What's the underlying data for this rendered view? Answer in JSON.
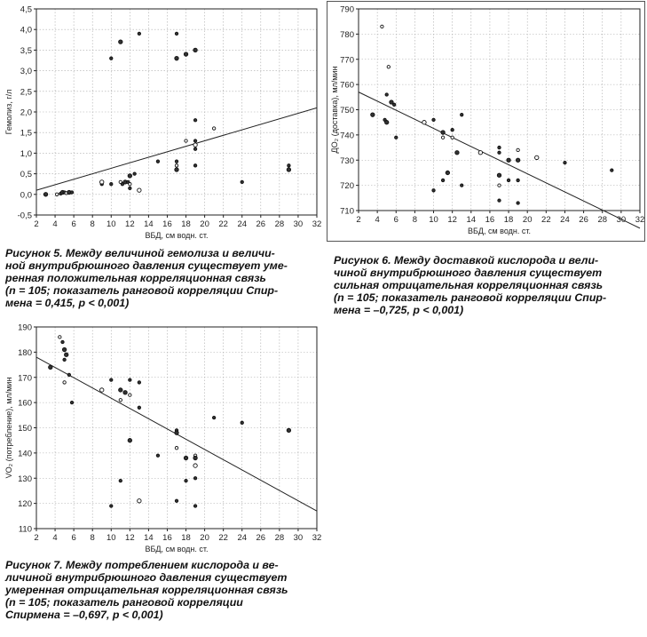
{
  "charts": [
    {
      "id": "fig5",
      "caption_lines": [
        "Рисунок 5. Между величиной гемолиза и величи-",
        "ной внутрибрюшного давления существует уме-",
        "ренная положительная корреляционная связь",
        "(n = 105; показатель ранговой корреляции Спир-",
        "мена = 0,415, p < 0,001)"
      ],
      "chart_data": {
        "type": "scatter",
        "xlabel": "ВБД, см водн. ст.",
        "ylabel": "Гемолиз, г/л",
        "xlim": [
          2,
          32
        ],
        "ylim": [
          -0.5,
          4.5
        ],
        "xticks": [
          "2",
          "4",
          "6",
          "8",
          "10",
          "12",
          "14",
          "16",
          "18",
          "20",
          "22",
          "24",
          "26",
          "28",
          "30",
          "32"
        ],
        "yticks": [
          "-0,5",
          "0,0",
          "0,5",
          "1,0",
          "1,5",
          "2,0",
          "2,5",
          "3,0",
          "3,5",
          "4,0",
          "4,5"
        ],
        "trendline": [
          [
            2,
            0.1
          ],
          [
            32,
            2.1
          ]
        ],
        "points": [
          [
            3,
            0.0
          ],
          [
            4.2,
            0.0
          ],
          [
            4.6,
            0.02
          ],
          [
            4.8,
            0.05
          ],
          [
            5,
            0.05
          ],
          [
            5.2,
            0.03
          ],
          [
            5.5,
            0.05
          ],
          [
            5.8,
            0.05
          ],
          [
            9,
            0.25
          ],
          [
            9,
            0.3
          ],
          [
            10,
            0.25
          ],
          [
            10,
            3.3
          ],
          [
            11,
            3.7
          ],
          [
            11,
            0.3
          ],
          [
            11.2,
            0.25
          ],
          [
            11.5,
            0.3
          ],
          [
            11.8,
            0.3
          ],
          [
            12,
            0.25
          ],
          [
            12,
            0.45
          ],
          [
            12,
            0.15
          ],
          [
            12.5,
            0.5
          ],
          [
            13,
            0.1
          ],
          [
            13,
            3.9
          ],
          [
            15,
            0.8
          ],
          [
            17,
            0.6
          ],
          [
            17,
            0.7
          ],
          [
            17,
            0.8
          ],
          [
            17,
            3.3
          ],
          [
            17,
            3.9
          ],
          [
            18,
            1.3
          ],
          [
            18,
            3.4
          ],
          [
            19,
            0.7
          ],
          [
            19,
            1.1
          ],
          [
            19,
            1.2
          ],
          [
            19,
            1.3
          ],
          [
            19,
            1.8
          ],
          [
            19,
            3.5
          ],
          [
            21,
            1.6
          ],
          [
            24,
            0.3
          ],
          [
            29,
            0.6
          ],
          [
            29,
            0.7
          ]
        ]
      }
    },
    {
      "id": "fig6",
      "caption_lines": [
        "Рисунок 6. Между доставкой кислорода и вели-",
        "чиной внутрибрюшного давления существует",
        "сильная отрицательная корреляционная связь",
        "(n = 105; показатель ранговой корреляции Спир-",
        "мена = –0,725, p < 0,001)"
      ],
      "chart_data": {
        "type": "scatter",
        "xlabel": "ВБД, см водн. ст.",
        "ylabel": "ДО₂ (доставка), мл/мин",
        "xlim": [
          2,
          32
        ],
        "ylim": [
          710,
          790
        ],
        "xticks": [
          "2",
          "4",
          "6",
          "8",
          "10",
          "12",
          "14",
          "16",
          "18",
          "20",
          "22",
          "24",
          "26",
          "28",
          "30",
          "32"
        ],
        "yticks": [
          "710",
          "720",
          "730",
          "740",
          "750",
          "760",
          "770",
          "780",
          "790"
        ],
        "trendline": [
          [
            2,
            757
          ],
          [
            32,
            703
          ]
        ],
        "points": [
          [
            3.5,
            748
          ],
          [
            4.5,
            783
          ],
          [
            4.8,
            746
          ],
          [
            5,
            745
          ],
          [
            5,
            756
          ],
          [
            5.2,
            767
          ],
          [
            5.5,
            753
          ],
          [
            5.8,
            752
          ],
          [
            6,
            739
          ],
          [
            9,
            745
          ],
          [
            10,
            746
          ],
          [
            10,
            718
          ],
          [
            11,
            741
          ],
          [
            11,
            739
          ],
          [
            11,
            722
          ],
          [
            11.5,
            725
          ],
          [
            12,
            742
          ],
          [
            12,
            739
          ],
          [
            12.5,
            733
          ],
          [
            13,
            748
          ],
          [
            13,
            720
          ],
          [
            15,
            733
          ],
          [
            17,
            735
          ],
          [
            17,
            733
          ],
          [
            17,
            724
          ],
          [
            17,
            720
          ],
          [
            17,
            714
          ],
          [
            18,
            730
          ],
          [
            18,
            722
          ],
          [
            19,
            734
          ],
          [
            19,
            730
          ],
          [
            19,
            722
          ],
          [
            19,
            713
          ],
          [
            21,
            731
          ],
          [
            24,
            729
          ],
          [
            29,
            726
          ]
        ]
      }
    },
    {
      "id": "fig7",
      "caption_lines": [
        "Рисунок 7. Между потреблением кислорода и ве-",
        "личиной внутрибрюшного давления существует",
        "умеренная отрицательная корреляционная связь",
        "(n = 105; показатель ранговой корреляции",
        "Спирмена = –0,697, p < 0,001)"
      ],
      "chart_data": {
        "type": "scatter",
        "xlabel": "ВБД, см водн. ст.",
        "ylabel": "VO₂ (потребление), мл/мин",
        "xlim": [
          2,
          32
        ],
        "ylim": [
          110,
          190
        ],
        "xticks": [
          "2",
          "4",
          "6",
          "8",
          "10",
          "12",
          "14",
          "16",
          "18",
          "20",
          "22",
          "24",
          "26",
          "28",
          "30",
          "32"
        ],
        "yticks": [
          "110",
          "120",
          "130",
          "140",
          "150",
          "160",
          "170",
          "180",
          "190"
        ],
        "trendline": [
          [
            2,
            178
          ],
          [
            32,
            117
          ]
        ],
        "points": [
          [
            3.5,
            174
          ],
          [
            4.5,
            186
          ],
          [
            4.8,
            184
          ],
          [
            5,
            181
          ],
          [
            5,
            177
          ],
          [
            5,
            168
          ],
          [
            5.2,
            179
          ],
          [
            5.5,
            171
          ],
          [
            5.8,
            160
          ],
          [
            9,
            165
          ],
          [
            10,
            169
          ],
          [
            10,
            119
          ],
          [
            11,
            165
          ],
          [
            11,
            161
          ],
          [
            11,
            129
          ],
          [
            11.5,
            164
          ],
          [
            12,
            169
          ],
          [
            12,
            163
          ],
          [
            12,
            145
          ],
          [
            13,
            168
          ],
          [
            13,
            158
          ],
          [
            13,
            121
          ],
          [
            15,
            139
          ],
          [
            17,
            149
          ],
          [
            17,
            148
          ],
          [
            17,
            142
          ],
          [
            17,
            121
          ],
          [
            18,
            138
          ],
          [
            18,
            129
          ],
          [
            19,
            139
          ],
          [
            19,
            138
          ],
          [
            19,
            130
          ],
          [
            19,
            119
          ],
          [
            19,
            135
          ],
          [
            21,
            154
          ],
          [
            24,
            152
          ],
          [
            29,
            149
          ]
        ]
      }
    }
  ]
}
